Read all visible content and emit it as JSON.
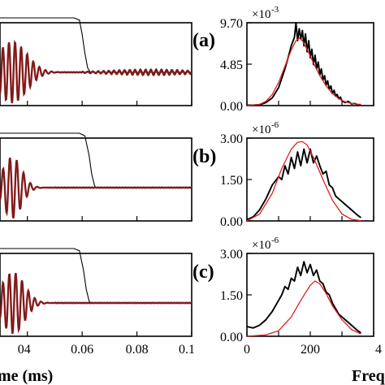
{
  "figure": {
    "x_axis_label_left": "me (ms)",
    "x_axis_label_right": "Freq",
    "panel_labels": [
      "(a)",
      "(b)",
      "(c)"
    ]
  },
  "chart_data": [
    {
      "type": "line",
      "panel": "a-time",
      "xlim": [
        0.03,
        0.1
      ],
      "x_ticks": [
        "04",
        "0.06",
        "0.08",
        "0.1"
      ],
      "series": [
        {
          "color": "#000000",
          "kind": "gate",
          "points": [
            [
              0.03,
              1
            ],
            [
              0.057,
              1
            ],
            [
              0.059,
              0.96
            ],
            [
              0.06,
              0.7
            ],
            [
              0.061,
              0.35
            ],
            [
              0.062,
              0.08
            ],
            [
              0.063,
              0
            ],
            [
              0.1,
              0
            ]
          ]
        },
        {
          "color": "#000000",
          "kind": "waveform"
        },
        {
          "color": "#8b1a1a",
          "kind": "waveform-fit"
        }
      ]
    },
    {
      "type": "line",
      "panel": "a-spectrum",
      "xlim": [
        0,
        400
      ],
      "ylim": [
        0,
        9.7
      ],
      "y_ticks": [
        "0.00",
        "4.85",
        "9.70"
      ],
      "y_multiplier": {
        "base": "×10",
        "exponent": "-3"
      },
      "series": [
        {
          "color": "#000000",
          "kind": "measured",
          "points": [
            [
              0,
              0.05
            ],
            [
              20,
              0.05
            ],
            [
              40,
              0.1
            ],
            [
              60,
              0.35
            ],
            [
              80,
              0.9
            ],
            [
              100,
              2.1
            ],
            [
              110,
              3.2
            ],
            [
              120,
              4.3
            ],
            [
              130,
              5.6
            ],
            [
              140,
              7.0
            ],
            [
              150,
              8.0
            ],
            [
              155,
              9.7
            ],
            [
              160,
              7.6
            ],
            [
              165,
              9.0
            ],
            [
              170,
              7.8
            ],
            [
              175,
              8.8
            ],
            [
              180,
              7.0
            ],
            [
              185,
              8.4
            ],
            [
              190,
              6.3
            ],
            [
              195,
              7.6
            ],
            [
              200,
              5.6
            ],
            [
              205,
              6.6
            ],
            [
              210,
              4.8
            ],
            [
              215,
              5.9
            ],
            [
              220,
              4.3
            ],
            [
              225,
              5.1
            ],
            [
              230,
              3.6
            ],
            [
              235,
              4.3
            ],
            [
              240,
              3.0
            ],
            [
              245,
              3.5
            ],
            [
              250,
              2.4
            ],
            [
              255,
              2.9
            ],
            [
              260,
              1.9
            ],
            [
              265,
              2.3
            ],
            [
              270,
              1.4
            ],
            [
              275,
              1.8
            ],
            [
              280,
              1.1
            ],
            [
              285,
              1.3
            ],
            [
              290,
              0.8
            ],
            [
              295,
              1.0
            ],
            [
              300,
              0.55
            ],
            [
              310,
              0.35
            ],
            [
              320,
              0.5
            ],
            [
              330,
              0.2
            ],
            [
              340,
              0.25
            ],
            [
              350,
              0.1
            ],
            [
              360,
              0.12
            ]
          ]
        },
        {
          "color": "#e02020",
          "kind": "model",
          "points": [
            [
              0,
              0
            ],
            [
              40,
              0.15
            ],
            [
              60,
              0.5
            ],
            [
              80,
              1.3
            ],
            [
              100,
              2.7
            ],
            [
              120,
              4.6
            ],
            [
              140,
              6.5
            ],
            [
              155,
              7.6
            ],
            [
              165,
              7.9
            ],
            [
              175,
              7.6
            ],
            [
              190,
              6.6
            ],
            [
              210,
              5.0
            ],
            [
              230,
              3.5
            ],
            [
              250,
              2.3
            ],
            [
              270,
              1.4
            ],
            [
              290,
              0.8
            ],
            [
              310,
              0.45
            ],
            [
              330,
              0.25
            ],
            [
              360,
              0.1
            ]
          ]
        }
      ]
    },
    {
      "type": "line",
      "panel": "b-time",
      "xlim": [
        0.03,
        0.1
      ],
      "series": [
        {
          "color": "#000000",
          "kind": "gate",
          "points": [
            [
              0.03,
              1
            ],
            [
              0.059,
              1
            ],
            [
              0.061,
              0.95
            ],
            [
              0.0625,
              0.6
            ],
            [
              0.0635,
              0.25
            ],
            [
              0.0645,
              0.04
            ],
            [
              0.065,
              0
            ],
            [
              0.1,
              0
            ]
          ]
        },
        {
          "color": "#000000",
          "kind": "waveform"
        },
        {
          "color": "#8b1a1a",
          "kind": "waveform-fit"
        }
      ]
    },
    {
      "type": "line",
      "panel": "b-spectrum",
      "xlim": [
        0,
        400
      ],
      "ylim": [
        0,
        3.0
      ],
      "y_ticks": [
        "0.00",
        "1.50",
        "3.00"
      ],
      "y_multiplier": {
        "base": "×10",
        "exponent": "-6"
      },
      "series": [
        {
          "color": "#000000",
          "kind": "measured",
          "points": [
            [
              0,
              0.04
            ],
            [
              20,
              0.15
            ],
            [
              40,
              0.4
            ],
            [
              60,
              0.8
            ],
            [
              80,
              1.3
            ],
            [
              100,
              1.6
            ],
            [
              110,
              1.5
            ],
            [
              120,
              2.0
            ],
            [
              130,
              1.7
            ],
            [
              140,
              2.3
            ],
            [
              150,
              1.9
            ],
            [
              160,
              2.5
            ],
            [
              170,
              2.0
            ],
            [
              180,
              2.6
            ],
            [
              190,
              2.1
            ],
            [
              200,
              2.6
            ],
            [
              210,
              2.1
            ],
            [
              220,
              2.35
            ],
            [
              230,
              2.0
            ],
            [
              240,
              1.7
            ],
            [
              250,
              1.8
            ],
            [
              260,
              1.3
            ],
            [
              270,
              1.2
            ],
            [
              280,
              0.9
            ],
            [
              290,
              0.8
            ],
            [
              300,
              0.7
            ],
            [
              310,
              0.6
            ],
            [
              320,
              0.5
            ],
            [
              330,
              0.4
            ],
            [
              340,
              0.3
            ],
            [
              350,
              0.2
            ],
            [
              360,
              0.12
            ]
          ]
        },
        {
          "color": "#e02020",
          "kind": "model",
          "points": [
            [
              0,
              0
            ],
            [
              40,
              0.25
            ],
            [
              80,
              1.0
            ],
            [
              110,
              1.9
            ],
            [
              140,
              2.6
            ],
            [
              160,
              2.85
            ],
            [
              175,
              2.87
            ],
            [
              190,
              2.75
            ],
            [
              210,
              2.3
            ],
            [
              240,
              1.5
            ],
            [
              270,
              0.75
            ],
            [
              300,
              0.25
            ],
            [
              330,
              0.06
            ],
            [
              360,
              0.01
            ]
          ]
        }
      ]
    },
    {
      "type": "line",
      "panel": "c-time",
      "xlim": [
        0.03,
        0.1
      ],
      "x_ticks": [
        "04",
        "0.06",
        "0.08",
        "0.1"
      ],
      "series": [
        {
          "color": "#000000",
          "kind": "gate",
          "points": [
            [
              0.03,
              1
            ],
            [
              0.057,
              1
            ],
            [
              0.059,
              0.96
            ],
            [
              0.0605,
              0.6
            ],
            [
              0.0615,
              0.25
            ],
            [
              0.0625,
              0.04
            ],
            [
              0.063,
              0
            ],
            [
              0.1,
              0
            ]
          ]
        },
        {
          "color": "#000000",
          "kind": "waveform"
        },
        {
          "color": "#8b1a1a",
          "kind": "waveform-fit"
        }
      ]
    },
    {
      "type": "line",
      "panel": "c-spectrum",
      "xlim": [
        0,
        400
      ],
      "ylim": [
        0,
        3.0
      ],
      "x_ticks": [
        "0",
        "200",
        "4"
      ],
      "y_ticks": [
        "0.00",
        "1.50",
        "3.00"
      ],
      "y_multiplier": {
        "base": "×10",
        "exponent": "-6"
      },
      "series": [
        {
          "color": "#000000",
          "kind": "measured",
          "points": [
            [
              0,
              0.35
            ],
            [
              20,
              0.3
            ],
            [
              40,
              0.4
            ],
            [
              60,
              0.6
            ],
            [
              80,
              0.9
            ],
            [
              100,
              1.3
            ],
            [
              110,
              1.5
            ],
            [
              120,
              1.8
            ],
            [
              130,
              1.7
            ],
            [
              140,
              2.1
            ],
            [
              150,
              2.0
            ],
            [
              160,
              2.5
            ],
            [
              170,
              2.2
            ],
            [
              180,
              2.7
            ],
            [
              190,
              2.3
            ],
            [
              200,
              2.6
            ],
            [
              210,
              2.2
            ],
            [
              220,
              2.4
            ],
            [
              230,
              2.0
            ],
            [
              240,
              1.9
            ],
            [
              250,
              1.6
            ],
            [
              260,
              1.5
            ],
            [
              270,
              1.2
            ],
            [
              280,
              1.0
            ],
            [
              290,
              0.8
            ],
            [
              300,
              0.7
            ],
            [
              310,
              0.6
            ],
            [
              320,
              0.5
            ],
            [
              330,
              0.4
            ],
            [
              340,
              0.3
            ],
            [
              350,
              0.2
            ],
            [
              360,
              0.12
            ]
          ]
        },
        {
          "color": "#e02020",
          "kind": "model",
          "points": [
            [
              0,
              0
            ],
            [
              60,
              0.05
            ],
            [
              100,
              0.2
            ],
            [
              140,
              0.7
            ],
            [
              170,
              1.3
            ],
            [
              200,
              1.85
            ],
            [
              215,
              2.0
            ],
            [
              230,
              1.9
            ],
            [
              250,
              1.55
            ],
            [
              270,
              1.1
            ],
            [
              300,
              0.6
            ],
            [
              330,
              0.25
            ],
            [
              360,
              0.08
            ]
          ]
        }
      ]
    }
  ]
}
